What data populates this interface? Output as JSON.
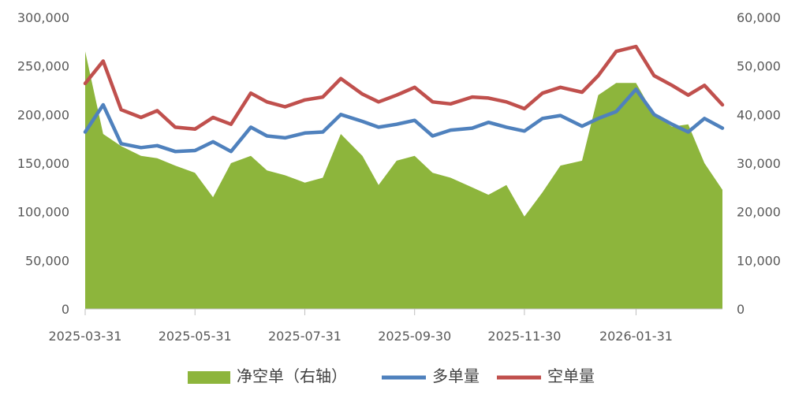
{
  "chart_data": {
    "type": "line",
    "title": "",
    "xlabel": "",
    "ylabel": "",
    "x_tick_labels": [
      "2025-03-31",
      "2025-05-31",
      "2025-07-31",
      "2025-09-30",
      "2025-11-30",
      "2026-01-31"
    ],
    "y_left": {
      "ticks": [
        "300,000",
        "250,000",
        "200,000",
        "150,000",
        "100,000",
        "50,000",
        "0"
      ],
      "ylim": [
        0,
        300000
      ]
    },
    "y_right": {
      "ticks": [
        "60,000",
        "50,000",
        "40,000",
        "30,000",
        "20,000",
        "10,000",
        "0"
      ],
      "ylim": [
        0,
        60000
      ]
    },
    "legend": {
      "position": "bottom"
    },
    "colors": {
      "area": "#8DB53C",
      "long": "#4F81BD",
      "short": "#C0504D"
    },
    "categories": [
      "2025-03-31",
      "2025-04-10",
      "2025-04-20",
      "2025-05-01",
      "2025-05-10",
      "2025-05-20",
      "2025-05-31",
      "2025-06-10",
      "2025-06-20",
      "2025-07-01",
      "2025-07-10",
      "2025-07-20",
      "2025-07-31",
      "2025-08-10",
      "2025-08-20",
      "2025-09-01",
      "2025-09-10",
      "2025-09-20",
      "2025-09-30",
      "2025-10-10",
      "2025-10-20",
      "2025-11-01",
      "2025-11-10",
      "2025-11-20",
      "2025-11-30",
      "2025-12-10",
      "2025-12-20",
      "2026-01-01",
      "2026-01-10",
      "2026-01-20",
      "2026-01-31",
      "2026-02-10",
      "2026-02-20",
      "2026-03-01",
      "2026-03-10",
      "2026-03-20"
    ],
    "series": [
      {
        "name": "净空单（右轴）",
        "axis": "right",
        "type": "area",
        "values": [
          53000,
          36000,
          33500,
          31500,
          31000,
          29500,
          28000,
          23000,
          30000,
          31500,
          28500,
          27500,
          26000,
          27000,
          36000,
          31500,
          25500,
          30500,
          31500,
          28000,
          27000,
          25000,
          23500,
          25500,
          19000,
          24000,
          29500,
          30500,
          44000,
          46500,
          46500,
          40000,
          37500,
          38000,
          30000,
          24500
        ]
      },
      {
        "name": "多单量",
        "axis": "left",
        "type": "line",
        "values": [
          182000,
          210000,
          170000,
          166000,
          168000,
          162000,
          163000,
          172000,
          162000,
          187000,
          178000,
          176000,
          181000,
          182000,
          200000,
          193000,
          187000,
          190000,
          194000,
          178000,
          184000,
          186000,
          192000,
          187000,
          183000,
          196000,
          199000,
          188000,
          196000,
          203000,
          226000,
          200000,
          190000,
          182000,
          196000,
          186000
        ]
      },
      {
        "name": "空单量",
        "axis": "left",
        "type": "line",
        "values": [
          232000,
          255000,
          205000,
          197000,
          204000,
          187000,
          185000,
          197000,
          190000,
          222000,
          213000,
          208000,
          215000,
          218000,
          237000,
          221000,
          213000,
          220000,
          228000,
          213000,
          211000,
          218000,
          217000,
          213000,
          206000,
          222000,
          228000,
          223000,
          240000,
          265000,
          270000,
          240000,
          230000,
          220000,
          230000,
          210000
        ]
      }
    ]
  }
}
